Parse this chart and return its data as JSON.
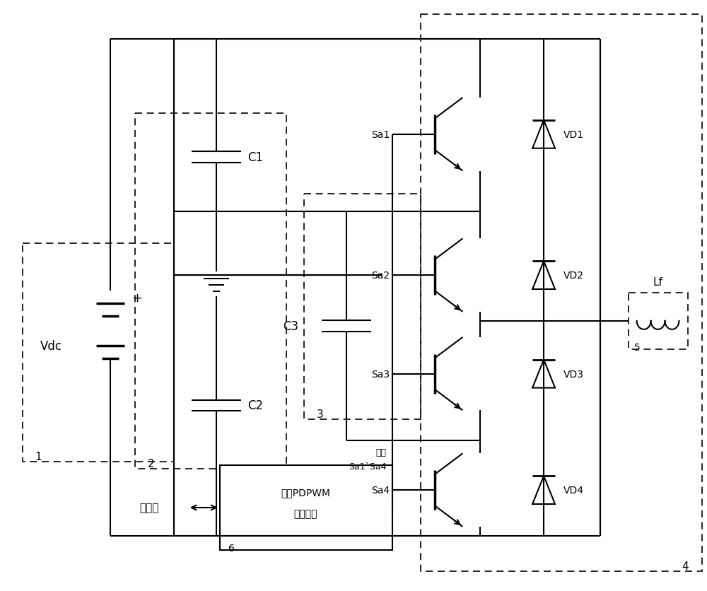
{
  "bg_color": "#ffffff",
  "line_color": "#000000",
  "fig_width": 10.0,
  "fig_height": 8.37,
  "labels": {
    "Vdc": "Vdc",
    "C1": "C1",
    "C2": "C2",
    "C3": "C3",
    "Sa1": "Sa1",
    "Sa2": "Sa2",
    "Sa3": "Sa3",
    "Sa4": "Sa4",
    "VD1": "VD1",
    "VD2": "VD2",
    "VD3": "VD3",
    "VD4": "VD4",
    "Lf": "Lf",
    "controller_line1": "改进PDPWM",
    "controller_line2": "逆变控制",
    "host": "上位机",
    "control_label_line1": "控制",
    "control_label_line2": "Sa1`Sa4",
    "num1": "1",
    "num2": "2",
    "num3": "3",
    "num4": "4",
    "num5": "5",
    "num6": "6"
  }
}
